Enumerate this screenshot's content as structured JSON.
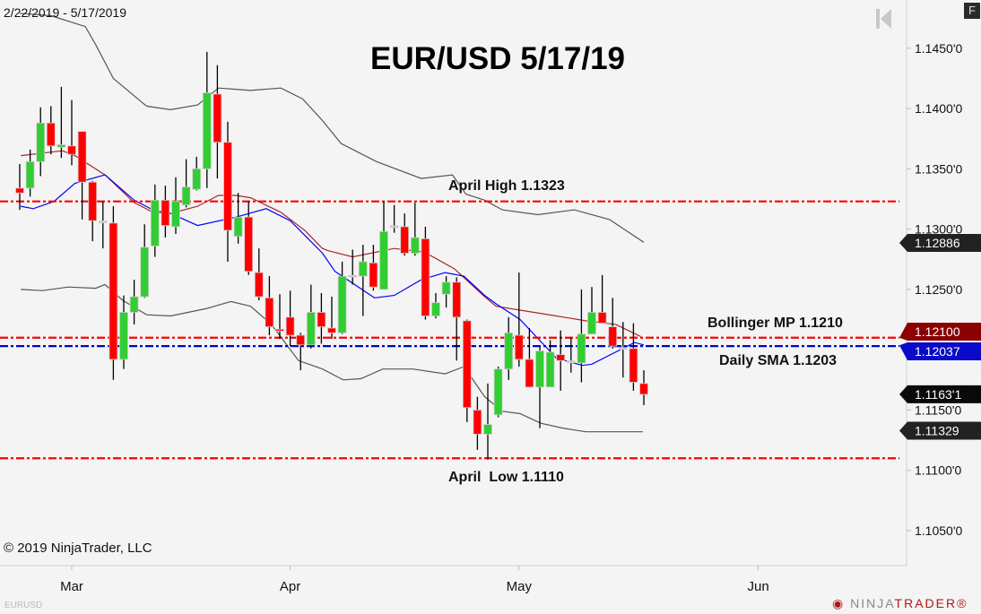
{
  "header": {
    "date_range": "2/22/2019 - 5/17/2019",
    "title": "EUR/USD 5/17/19"
  },
  "footer": {
    "copyright": "© 2019 NinjaTrader, LLC",
    "symbol": "EURUSD",
    "logo_part1": "NINJA",
    "logo_part2": "TRADER",
    "logo_mark": "®"
  },
  "toolbar": {
    "f_button": "F",
    "scroll_start_icon": "skip-to-start-icon"
  },
  "colors": {
    "up": "#32cd32",
    "down": "#ff0000",
    "wick": "#000000",
    "band": "#555555",
    "mid": "#a52a2a",
    "sma": "#0000ff",
    "hline_red": "#ff0000",
    "hline_blue": "#0000cc",
    "bg": "#f4f4f4"
  },
  "chart_data": {
    "type": "candlestick",
    "title": "EUR/USD 5/17/19",
    "start_date": "2019-02-22",
    "end_date": "2019-05-17",
    "ylim": [
      1.1021,
      1.149
    ],
    "y_ticks": [
      "1.1450'0",
      "1.1400'0",
      "1.1350'0",
      "1.1300'0",
      "1.1250'0",
      "1.1150'0",
      "1.1100'0",
      "1.1050'0"
    ],
    "y_tick_values": [
      1.145,
      1.14,
      1.135,
      1.13,
      1.125,
      1.115,
      1.11,
      1.105
    ],
    "x_ticks": [
      {
        "label": "Mar",
        "date": "2019-03-01"
      },
      {
        "label": "Apr",
        "date": "2019-04-01"
      },
      {
        "label": "May",
        "date": "2019-05-01"
      },
      {
        "label": "Jun",
        "date": "2019-06-03"
      }
    ],
    "ohlc": [
      [
        1.1334,
        1.1354,
        1.1316,
        1.133
      ],
      [
        1.1334,
        1.1366,
        1.1327,
        1.1356
      ],
      [
        1.1356,
        1.1401,
        1.1344,
        1.1388
      ],
      [
        1.1388,
        1.1402,
        1.1362,
        1.1369
      ],
      [
        1.1368,
        1.1418,
        1.1359,
        1.137
      ],
      [
        1.1369,
        1.1407,
        1.1353,
        1.1362
      ],
      [
        1.1381,
        1.1381,
        1.1308,
        1.1339
      ],
      [
        1.1339,
        1.134,
        1.129,
        1.1307
      ],
      [
        1.1306,
        1.1323,
        1.1284,
        1.1306
      ],
      [
        1.1305,
        1.1319,
        1.1175,
        1.1192
      ],
      [
        1.1192,
        1.1245,
        1.1184,
        1.1231
      ],
      [
        1.1231,
        1.1258,
        1.1221,
        1.1244
      ],
      [
        1.1244,
        1.1304,
        1.1243,
        1.1285
      ],
      [
        1.1286,
        1.1337,
        1.1277,
        1.1324
      ],
      [
        1.1324,
        1.1336,
        1.1293,
        1.1303
      ],
      [
        1.1302,
        1.1343,
        1.1296,
        1.1323
      ],
      [
        1.132,
        1.1358,
        1.1318,
        1.1335
      ],
      [
        1.1333,
        1.136,
        1.1332,
        1.135
      ],
      [
        1.135,
        1.1447,
        1.1334,
        1.1413
      ],
      [
        1.1412,
        1.1436,
        1.1342,
        1.1372
      ],
      [
        1.1372,
        1.1389,
        1.1273,
        1.1299
      ],
      [
        1.1294,
        1.133,
        1.1288,
        1.131
      ],
      [
        1.131,
        1.1323,
        1.1262,
        1.1265
      ],
      [
        1.1264,
        1.1284,
        1.1241,
        1.1244
      ],
      [
        1.1243,
        1.1261,
        1.1212,
        1.1219
      ],
      [
        1.1217,
        1.1246,
        1.1209,
        1.1216
      ],
      [
        1.1227,
        1.1249,
        1.1203,
        1.1212
      ],
      [
        1.1212,
        1.1214,
        1.1183,
        1.1204
      ],
      [
        1.1204,
        1.1254,
        1.1201,
        1.1231
      ],
      [
        1.1231,
        1.1247,
        1.1205,
        1.1219
      ],
      [
        1.1218,
        1.1244,
        1.1209,
        1.1214
      ],
      [
        1.1214,
        1.1273,
        1.1213,
        1.1261
      ],
      [
        1.1261,
        1.1283,
        1.1254,
        1.1261
      ],
      [
        1.1261,
        1.1287,
        1.1228,
        1.1273
      ],
      [
        1.1272,
        1.1287,
        1.1249,
        1.1252
      ],
      [
        1.125,
        1.1323,
        1.125,
        1.1298
      ],
      [
        1.1302,
        1.132,
        1.1297,
        1.1302
      ],
      [
        1.1302,
        1.1313,
        1.1278,
        1.128
      ],
      [
        1.128,
        1.1322,
        1.1278,
        1.1293
      ],
      [
        1.1292,
        1.1302,
        1.1225,
        1.1228
      ],
      [
        1.1228,
        1.1247,
        1.1226,
        1.1239
      ],
      [
        1.1246,
        1.1261,
        1.1235,
        1.1256
      ],
      [
        1.1256,
        1.126,
        1.1191,
        1.1227
      ],
      [
        1.1224,
        1.1225,
        1.114,
        1.1152
      ],
      [
        1.115,
        1.1161,
        1.1117,
        1.113
      ],
      [
        1.113,
        1.1172,
        1.1109,
        1.1138
      ],
      [
        1.1146,
        1.1186,
        1.1144,
        1.1184
      ],
      [
        1.1184,
        1.1227,
        1.1175,
        1.1214
      ],
      [
        1.1212,
        1.1264,
        1.1186,
        1.1192
      ],
      [
        1.1192,
        1.1218,
        1.1169,
        1.1169
      ],
      [
        1.1169,
        1.1203,
        1.1135,
        1.1199
      ],
      [
        1.1169,
        1.1208,
        1.1169,
        1.1198
      ],
      [
        1.1196,
        1.1216,
        1.1166,
        1.1191
      ],
      [
        1.119,
        1.121,
        1.1181,
        1.119
      ],
      [
        1.1189,
        1.125,
        1.1173,
        1.1213
      ],
      [
        1.1213,
        1.1252,
        1.1213,
        1.1231
      ],
      [
        1.1231,
        1.1262,
        1.1222,
        1.1222
      ],
      [
        1.1219,
        1.1243,
        1.1201,
        1.1203
      ],
      [
        1.1201,
        1.1223,
        1.1177,
        1.1201
      ],
      [
        1.1201,
        1.1222,
        1.1166,
        1.1173
      ],
      [
        1.1172,
        1.1183,
        1.1154,
        1.1163
      ]
    ],
    "indicators": {
      "bollinger_upper": [
        [
          0,
          1.1479
        ],
        [
          3,
          1.1477
        ],
        [
          6.3,
          1.1468
        ],
        [
          7.3,
          1.1453
        ],
        [
          9,
          1.1425
        ],
        [
          12.2,
          1.1402
        ],
        [
          14.5,
          1.1399
        ],
        [
          17.1,
          1.1403
        ],
        [
          19.1,
          1.1417
        ],
        [
          22.2,
          1.1415
        ],
        [
          25.1,
          1.1417
        ],
        [
          27.2,
          1.1408
        ],
        [
          29.1,
          1.139
        ],
        [
          30.9,
          1.1371
        ],
        [
          34.3,
          1.1356
        ],
        [
          38.6,
          1.1342
        ],
        [
          41.6,
          1.1345
        ],
        [
          42.9,
          1.1329
        ],
        [
          44.7,
          1.1324
        ],
        [
          46.4,
          1.1316
        ],
        [
          49.8,
          1.1312
        ],
        [
          53.3,
          1.1316
        ],
        [
          56.7,
          1.1308
        ],
        [
          60,
          1.1289
        ]
      ],
      "bollinger_mid": [
        [
          0.1,
          1.1361
        ],
        [
          4.1,
          1.1365
        ],
        [
          5.3,
          1.1361
        ],
        [
          8.2,
          1.1345
        ],
        [
          11,
          1.1322
        ],
        [
          12.8,
          1.1314
        ],
        [
          14.5,
          1.1313
        ],
        [
          17.1,
          1.1319
        ],
        [
          19.1,
          1.1328
        ],
        [
          20.8,
          1.1328
        ],
        [
          22.2,
          1.1326
        ],
        [
          25.1,
          1.1314
        ],
        [
          27.4,
          1.1299
        ],
        [
          29.1,
          1.1284
        ],
        [
          29.7,
          1.1282
        ],
        [
          32,
          1.1277
        ],
        [
          36,
          1.1284
        ],
        [
          38.9,
          1.1281
        ],
        [
          41.8,
          1.1267
        ],
        [
          44.7,
          1.1244
        ],
        [
          45.8,
          1.1236
        ],
        [
          48.7,
          1.1232
        ],
        [
          51.6,
          1.1228
        ],
        [
          54.4,
          1.1224
        ],
        [
          57.3,
          1.1221
        ],
        [
          59.7,
          1.1211
        ]
      ],
      "bollinger_lower": [
        [
          0.1,
          1.125
        ],
        [
          2.2,
          1.1249
        ],
        [
          4.7,
          1.1252
        ],
        [
          7.3,
          1.1251
        ],
        [
          8.2,
          1.1254
        ],
        [
          9.9,
          1.1241
        ],
        [
          12.2,
          1.1229
        ],
        [
          14.5,
          1.1228
        ],
        [
          17.9,
          1.1234
        ],
        [
          20.3,
          1.124
        ],
        [
          22.2,
          1.1236
        ],
        [
          24.2,
          1.1221
        ],
        [
          26.8,
          1.1191
        ],
        [
          29.1,
          1.1184
        ],
        [
          31.1,
          1.1175
        ],
        [
          32.8,
          1.1176
        ],
        [
          34.9,
          1.1184
        ],
        [
          37.8,
          1.1184
        ],
        [
          40.9,
          1.118
        ],
        [
          42.7,
          1.1186
        ],
        [
          44.7,
          1.1161
        ],
        [
          46.4,
          1.1149
        ],
        [
          48.1,
          1.1147
        ],
        [
          50.1,
          1.1139
        ],
        [
          52.2,
          1.1135
        ],
        [
          54.4,
          1.1132
        ],
        [
          57.3,
          1.1132
        ],
        [
          59.9,
          1.1132
        ]
      ],
      "sma": [
        [
          0.1,
          1.1319
        ],
        [
          1.3,
          1.1317
        ],
        [
          3.3,
          1.1323
        ],
        [
          5.3,
          1.1338
        ],
        [
          8.2,
          1.1345
        ],
        [
          11,
          1.1324
        ],
        [
          12.8,
          1.1316
        ],
        [
          14.5,
          1.1313
        ],
        [
          17.1,
          1.1303
        ],
        [
          20.8,
          1.131
        ],
        [
          23.7,
          1.1317
        ],
        [
          26,
          1.1307
        ],
        [
          27.4,
          1.1295
        ],
        [
          29.1,
          1.128
        ],
        [
          30.3,
          1.1265
        ],
        [
          34.1,
          1.1243
        ],
        [
          36,
          1.1245
        ],
        [
          38.6,
          1.1258
        ],
        [
          40.9,
          1.1264
        ],
        [
          42.7,
          1.1261
        ],
        [
          44.7,
          1.1245
        ],
        [
          45.8,
          1.1238
        ],
        [
          48.1,
          1.1225
        ],
        [
          51.6,
          1.1193
        ],
        [
          54.1,
          1.1187
        ],
        [
          55,
          1.1188
        ],
        [
          59.1,
          1.1206
        ],
        [
          60,
          1.1204
        ]
      ]
    },
    "hlines": [
      {
        "value": 1.1323,
        "color": "#ff0000",
        "label": "April High 1.1323"
      },
      {
        "value": 1.121,
        "color": "#ff0000",
        "label": "Bollinger MP 1.1210"
      },
      {
        "value": 1.1203,
        "color": "#0000cc",
        "label": "Daily SMA 1.1203"
      },
      {
        "value": 1.111,
        "color": "#ff0000",
        "label": "April  Low 1.1110"
      }
    ],
    "price_markers": [
      {
        "value": 1.12886,
        "text": "1.12886",
        "color": "#222222"
      },
      {
        "value": 1.121,
        "text": "1.12100",
        "color": "#8b0000"
      },
      {
        "value": 1.12037,
        "text": "1.12037",
        "color": "#0a0ac8"
      },
      {
        "value": 1.11631,
        "text": "1.1163'1",
        "color": "#0a0a0a"
      },
      {
        "value": 1.11329,
        "text": "1.11329",
        "color": "#222222"
      }
    ]
  }
}
